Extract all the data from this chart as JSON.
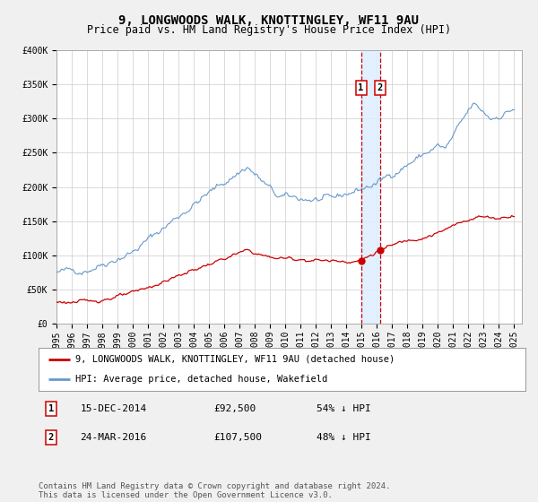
{
  "title": "9, LONGWOODS WALK, KNOTTINGLEY, WF11 9AU",
  "subtitle": "Price paid vs. HM Land Registry's House Price Index (HPI)",
  "red_label": "9, LONGWOODS WALK, KNOTTINGLEY, WF11 9AU (detached house)",
  "blue_label": "HPI: Average price, detached house, Wakefield",
  "sale1_date": "15-DEC-2014",
  "sale1_price": 92500,
  "sale2_date": "24-MAR-2016",
  "sale2_price": 107500,
  "sale1_pct": "54% ↓ HPI",
  "sale2_pct": "48% ↓ HPI",
  "footer": "Contains HM Land Registry data © Crown copyright and database right 2024.\nThis data is licensed under the Open Government Licence v3.0.",
  "ylim": [
    0,
    400000
  ],
  "yticks": [
    0,
    50000,
    100000,
    150000,
    200000,
    250000,
    300000,
    350000,
    400000
  ],
  "ylabel_fmt": [
    "£0",
    "£50K",
    "£100K",
    "£150K",
    "£200K",
    "£250K",
    "£300K",
    "£350K",
    "£400K"
  ],
  "blue_color": "#6699cc",
  "red_color": "#cc0000",
  "bg_color": "#f0f0f0",
  "plot_bg": "#ffffff",
  "grid_color": "#cccccc",
  "shade_color": "#ddeeff",
  "title_fontsize": 10,
  "subtitle_fontsize": 8.5,
  "tick_fontsize": 7,
  "legend_fontsize": 7.5,
  "footer_fontsize": 6.5
}
